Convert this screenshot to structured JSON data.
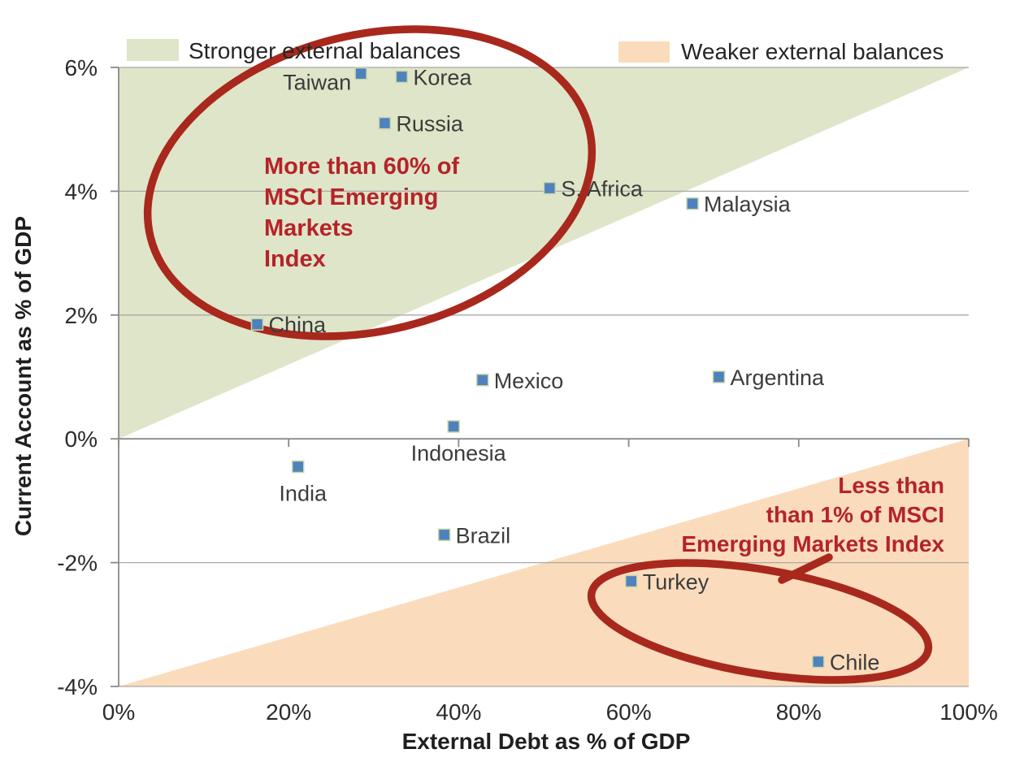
{
  "chart_data": {
    "type": "scatter",
    "title": "",
    "xlabel": "External Debt as % of GDP",
    "ylabel": "Current Account as % of GDP",
    "xlim": [
      0,
      100
    ],
    "ylim": [
      -4,
      6
    ],
    "grid": true,
    "legend_position": "top",
    "x_ticks": [
      {
        "value": 0,
        "label": "0%"
      },
      {
        "value": 20,
        "label": "20%"
      },
      {
        "value": 40,
        "label": "40%"
      },
      {
        "value": 60,
        "label": "60%"
      },
      {
        "value": 80,
        "label": "80%"
      },
      {
        "value": 100,
        "label": "100%"
      }
    ],
    "y_ticks": [
      {
        "value": 6,
        "label": "6%"
      },
      {
        "value": 4,
        "label": "4%"
      },
      {
        "value": 2,
        "label": "2%"
      },
      {
        "value": 0,
        "label": "0%"
      },
      {
        "value": -2,
        "label": "-2%"
      },
      {
        "value": -4,
        "label": "-4%"
      }
    ],
    "legend": [
      {
        "label": "Stronger external balances",
        "color": "#dfe5c8"
      },
      {
        "label": "Weaker external balances",
        "color": "#fadcbc"
      }
    ],
    "regions": [
      {
        "name": "stronger-external-balances",
        "color": "#dfe5c8",
        "polygon": [
          [
            0,
            0
          ],
          [
            0,
            6
          ],
          [
            100,
            6
          ]
        ]
      },
      {
        "name": "weaker-external-balances",
        "color": "#fadcbc",
        "polygon": [
          [
            0,
            -4
          ],
          [
            100,
            0
          ],
          [
            100,
            -4
          ]
        ]
      }
    ],
    "points": [
      {
        "name": "Taiwan",
        "x": 28.5,
        "y": 5.9,
        "label_side": "left"
      },
      {
        "name": "Korea",
        "x": 33.3,
        "y": 5.85,
        "label_side": "right"
      },
      {
        "name": "Russia",
        "x": 31.3,
        "y": 5.1,
        "label_side": "right"
      },
      {
        "name": "S. Africa",
        "x": 50.7,
        "y": 4.05,
        "label_side": "right"
      },
      {
        "name": "Malaysia",
        "x": 67.5,
        "y": 3.8,
        "label_side": "right"
      },
      {
        "name": "China",
        "x": 16.3,
        "y": 1.85,
        "label_side": "right"
      },
      {
        "name": "Mexico",
        "x": 42.8,
        "y": 0.95,
        "label_side": "right"
      },
      {
        "name": "Argentina",
        "x": 70.6,
        "y": 1.0,
        "label_side": "right"
      },
      {
        "name": "Indonesia",
        "x": 39.4,
        "y": 0.2,
        "label_side": "below"
      },
      {
        "name": "India",
        "x": 21.1,
        "y": -0.45,
        "label_side": "below"
      },
      {
        "name": "Brazil",
        "x": 38.3,
        "y": -1.55,
        "label_side": "right"
      },
      {
        "name": "Turkey",
        "x": 60.3,
        "y": -2.3,
        "label_side": "right"
      },
      {
        "name": "Chile",
        "x": 82.3,
        "y": -3.6,
        "label_side": "right"
      }
    ],
    "annotations": [
      {
        "id": "strong-note",
        "lines": [
          "More than 60% of",
          "MSCI Emerging",
          "Markets",
          "Index"
        ],
        "align": "left",
        "color": "#b5232a"
      },
      {
        "id": "weak-note",
        "lines": [
          "Less than",
          "than 1% of MSCI",
          "Emerging Markets Index"
        ],
        "align": "right",
        "color": "#b5232a"
      }
    ]
  },
  "styles": {
    "marker_fill": "#4f81bd",
    "marker_border": "#c9d8a7",
    "grid_color": "#a8a8a8",
    "axis_color": "#8a8a8a",
    "ellipse_color": "#a8281e",
    "tick_label_color": "#2b2b2b",
    "label_color": "#3c3c3c",
    "legend_text_color": "#262626",
    "background": "#ffffff"
  }
}
